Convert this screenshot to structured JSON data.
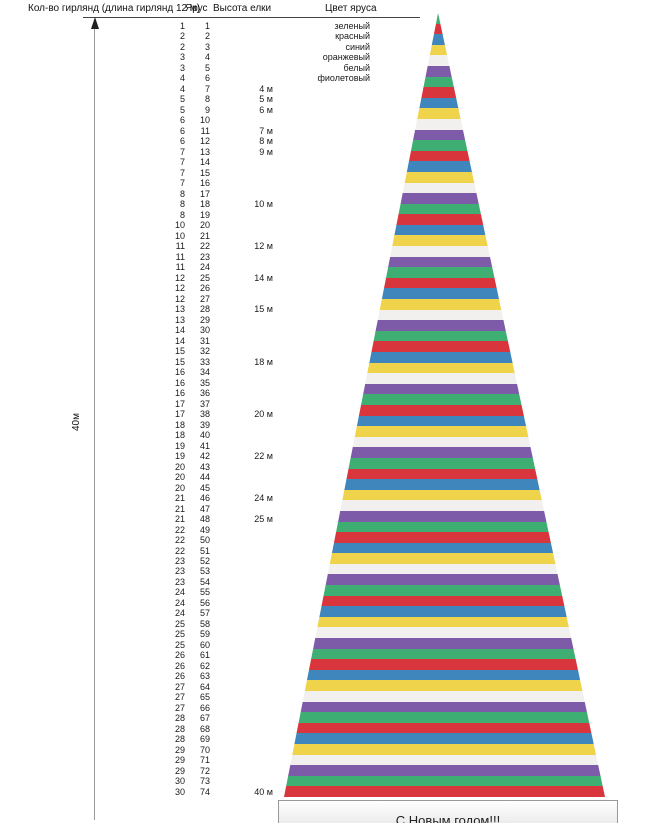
{
  "axis": {
    "total_height_label": "40м"
  },
  "banner": {
    "text": "С Новым годом!!!"
  },
  "chart_data": {
    "type": "table",
    "columns": [
      "Кол-во гирлянд (длина гирлянд 12 м)",
      "Ярус",
      "Высота елки",
      "Цвет яруса"
    ],
    "rows": [
      [
        1,
        1,
        "",
        "зеленый"
      ],
      [
        2,
        2,
        "",
        "красный"
      ],
      [
        2,
        3,
        "",
        "синий"
      ],
      [
        3,
        4,
        "",
        "оранжевый"
      ],
      [
        3,
        5,
        "",
        "белый"
      ],
      [
        4,
        6,
        "",
        "фиолетовый"
      ],
      [
        4,
        7,
        "4 м",
        ""
      ],
      [
        5,
        8,
        "5 м",
        ""
      ],
      [
        5,
        9,
        "6 м",
        ""
      ],
      [
        6,
        10,
        "",
        ""
      ],
      [
        6,
        11,
        "7 м",
        ""
      ],
      [
        6,
        12,
        "8 м",
        ""
      ],
      [
        7,
        13,
        "9 м",
        ""
      ],
      [
        7,
        14,
        "",
        ""
      ],
      [
        7,
        15,
        "",
        ""
      ],
      [
        7,
        16,
        "",
        ""
      ],
      [
        8,
        17,
        "",
        ""
      ],
      [
        8,
        18,
        "10 м",
        ""
      ],
      [
        8,
        19,
        "",
        ""
      ],
      [
        10,
        20,
        "",
        ""
      ],
      [
        10,
        21,
        "",
        ""
      ],
      [
        11,
        22,
        "12 м",
        ""
      ],
      [
        11,
        23,
        "",
        ""
      ],
      [
        11,
        24,
        "",
        ""
      ],
      [
        12,
        25,
        "14 м",
        ""
      ],
      [
        12,
        26,
        "",
        ""
      ],
      [
        12,
        27,
        "",
        ""
      ],
      [
        13,
        28,
        "15 м",
        ""
      ],
      [
        13,
        29,
        "",
        ""
      ],
      [
        14,
        30,
        "",
        ""
      ],
      [
        14,
        31,
        "",
        ""
      ],
      [
        15,
        32,
        "",
        ""
      ],
      [
        15,
        33,
        "18 м",
        ""
      ],
      [
        16,
        34,
        "",
        ""
      ],
      [
        16,
        35,
        "",
        ""
      ],
      [
        16,
        36,
        "",
        ""
      ],
      [
        17,
        37,
        "",
        ""
      ],
      [
        17,
        38,
        "20 м",
        ""
      ],
      [
        18,
        39,
        "",
        ""
      ],
      [
        18,
        40,
        "",
        ""
      ],
      [
        19,
        41,
        "",
        ""
      ],
      [
        19,
        42,
        "22 м",
        ""
      ],
      [
        20,
        43,
        "",
        ""
      ],
      [
        20,
        44,
        "",
        ""
      ],
      [
        20,
        45,
        "",
        ""
      ],
      [
        21,
        46,
        "24 м",
        ""
      ],
      [
        21,
        47,
        "",
        ""
      ],
      [
        21,
        48,
        "25 м",
        ""
      ],
      [
        22,
        49,
        "",
        ""
      ],
      [
        22,
        50,
        "",
        ""
      ],
      [
        22,
        51,
        "",
        ""
      ],
      [
        23,
        52,
        "",
        ""
      ],
      [
        23,
        53,
        "",
        ""
      ],
      [
        23,
        54,
        "",
        ""
      ],
      [
        24,
        55,
        "",
        ""
      ],
      [
        24,
        56,
        "",
        ""
      ],
      [
        24,
        57,
        "",
        ""
      ],
      [
        25,
        58,
        "",
        ""
      ],
      [
        25,
        59,
        "",
        ""
      ],
      [
        25,
        60,
        "",
        ""
      ],
      [
        26,
        61,
        "",
        ""
      ],
      [
        26,
        62,
        "",
        ""
      ],
      [
        26,
        63,
        "",
        ""
      ],
      [
        27,
        64,
        "",
        ""
      ],
      [
        27,
        65,
        "",
        ""
      ],
      [
        27,
        66,
        "",
        ""
      ],
      [
        28,
        67,
        "",
        ""
      ],
      [
        28,
        68,
        "",
        ""
      ],
      [
        28,
        69,
        "",
        ""
      ],
      [
        29,
        70,
        "",
        ""
      ],
      [
        29,
        71,
        "",
        ""
      ],
      [
        29,
        72,
        "",
        ""
      ],
      [
        30,
        73,
        "",
        ""
      ],
      [
        30,
        74,
        "40 м",
        ""
      ]
    ],
    "tree": {
      "tiers": 74,
      "total_height": "40м",
      "color_cycle": [
        "зеленый",
        "красный",
        "синий",
        "оранжевый",
        "белый",
        "фиолетовый"
      ],
      "palette": {
        "зеленый": "#3fae73",
        "красный": "#d8353c",
        "синий": "#3f86bd",
        "оранжевый": "#efd34a",
        "белый": "#f1f0ee",
        "фиолетовый": "#7e5ba8"
      }
    }
  }
}
